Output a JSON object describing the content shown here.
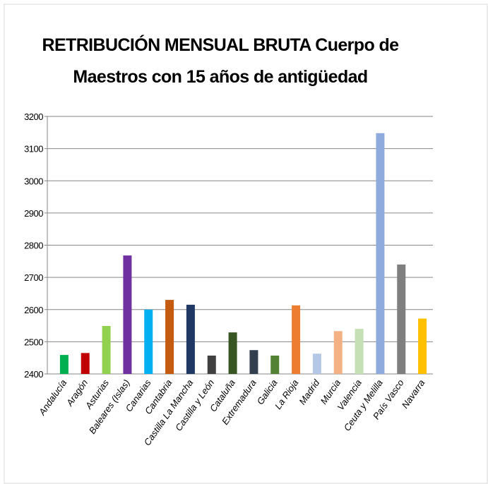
{
  "chart_data": {
    "type": "bar",
    "title": [
      "RETRIBUCIÓN MENSUAL BRUTA Cuerpo de",
      "Maestros con 15 años de antigüedad"
    ],
    "categories": [
      "Andalucía",
      "Aragón",
      "Asturias",
      "Baleares (Islas)",
      "Canarias",
      "Cantabria",
      "Castilla La Mancha",
      "Castilla y León",
      "Cataluña",
      "Extremadura",
      "Galicia",
      "La Rioja",
      "Madrid",
      "Murcia",
      "Valencia",
      "Ceuta y Melilla",
      "País Vasco",
      "Navarra"
    ],
    "values": [
      2459,
      2465,
      2549,
      2768,
      2600,
      2630,
      2615,
      2457,
      2529,
      2474,
      2457,
      2613,
      2463,
      2533,
      2540,
      3148,
      2740,
      2572
    ],
    "colors": [
      "#00b050",
      "#c00000",
      "#92d050",
      "#7030a0",
      "#00b0f0",
      "#c55a11",
      "#1f3864",
      "#404040",
      "#375623",
      "#323f4f",
      "#548235",
      "#ed7d31",
      "#b4c7e7",
      "#f4b183",
      "#c5e0b4",
      "#8faadc",
      "#7f7f7f",
      "#ffc000"
    ],
    "ylim": [
      2400,
      3200
    ],
    "yticks": [
      2400,
      2500,
      2600,
      2700,
      2800,
      2900,
      3000,
      3100,
      3200
    ],
    "grid": true
  }
}
